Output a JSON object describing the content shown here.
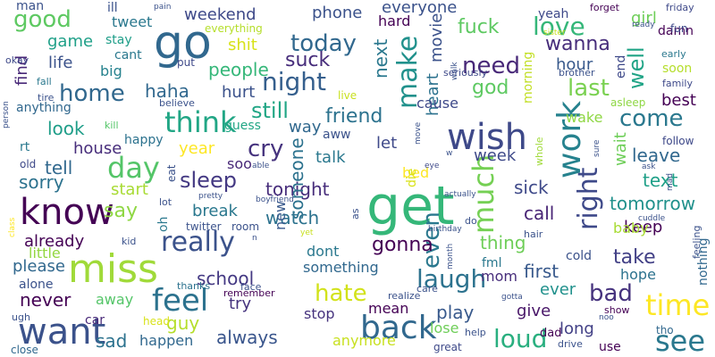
{
  "words": [
    {
      "text": "get",
      "color": "#35b779"
    },
    {
      "text": "go",
      "color": "#31688e"
    },
    {
      "text": "miss",
      "color": "#a0da39"
    },
    {
      "text": "know",
      "color": "#440154"
    },
    {
      "text": "wish",
      "color": "#3e4989"
    },
    {
      "text": "work",
      "color": "#26828e"
    },
    {
      "text": "want",
      "color": "#3b528b"
    },
    {
      "text": "back",
      "color": "#31688e"
    },
    {
      "text": "see",
      "color": "#2a788e"
    },
    {
      "text": "time",
      "color": "#fde725"
    },
    {
      "text": "feel",
      "color": "#2c728e"
    },
    {
      "text": "make",
      "color": "#21918c"
    },
    {
      "text": "much",
      "color": "#75d054"
    },
    {
      "text": "think",
      "color": "#21a685"
    },
    {
      "text": "day",
      "color": "#54c568"
    },
    {
      "text": "really",
      "color": "#3b528b"
    },
    {
      "text": "laugh",
      "color": "#2c728e"
    },
    {
      "text": "loud",
      "color": "#29af7f"
    },
    {
      "text": "love",
      "color": "#35b779"
    },
    {
      "text": "right",
      "color": "#3e4989"
    },
    {
      "text": "night",
      "color": "#355f8d"
    },
    {
      "text": "today",
      "color": "#31688e"
    },
    {
      "text": "need",
      "color": "#482878"
    },
    {
      "text": "good",
      "color": "#5ec962"
    },
    {
      "text": "home",
      "color": "#31688e"
    },
    {
      "text": "hate",
      "color": "#d2e21b"
    },
    {
      "text": "bad",
      "color": "#46337e"
    },
    {
      "text": "come",
      "color": "#2a788e"
    },
    {
      "text": "last",
      "color": "#7ad151"
    },
    {
      "text": "still",
      "color": "#21a685"
    },
    {
      "text": "even",
      "color": "#2a788e"
    },
    {
      "text": "cry",
      "color": "#46337e"
    },
    {
      "text": "wanna",
      "color": "#472d7b"
    },
    {
      "text": "sleep",
      "color": "#443983"
    },
    {
      "text": "friend",
      "color": "#2c728e"
    },
    {
      "text": "well",
      "color": "#20a486"
    },
    {
      "text": "fuck",
      "color": "#5ec962"
    },
    {
      "text": "god",
      "color": "#5ec962"
    },
    {
      "text": "suck",
      "color": "#472d7b"
    },
    {
      "text": "gonna",
      "color": "#440154"
    },
    {
      "text": "tonight",
      "color": "#472d7b"
    },
    {
      "text": "take",
      "color": "#424086"
    },
    {
      "text": "say",
      "color": "#8fd744"
    },
    {
      "text": "sorry",
      "color": "#2c728e"
    },
    {
      "text": "tell",
      "color": "#31688e"
    },
    {
      "text": "play",
      "color": "#38598c"
    },
    {
      "text": "always",
      "color": "#39558c"
    },
    {
      "text": "sad",
      "color": "#2c728e"
    },
    {
      "text": "text",
      "color": "#1fa088"
    },
    {
      "text": "next",
      "color": "#2a788e"
    },
    {
      "text": "watch",
      "color": "#2c728e"
    },
    {
      "text": "first",
      "color": "#38598c"
    },
    {
      "text": "look",
      "color": "#1f9e89"
    },
    {
      "text": "call",
      "color": "#482475"
    },
    {
      "text": "school",
      "color": "#443983"
    },
    {
      "text": "sick",
      "color": "#3e4989"
    },
    {
      "text": "movie",
      "color": "#3b528b"
    },
    {
      "text": "heart",
      "color": "#2c728e"
    },
    {
      "text": "tomorrow",
      "color": "#21918c"
    },
    {
      "text": "haha",
      "color": "#31688e"
    },
    {
      "text": "people",
      "color": "#35b779"
    },
    {
      "text": "guy",
      "color": "#b5de2b"
    },
    {
      "text": "someone",
      "color": "#2c728e"
    },
    {
      "text": "wait",
      "color": "#6ece58"
    },
    {
      "text": "thing",
      "color": "#6ece58"
    },
    {
      "text": "already",
      "color": "#440154"
    },
    {
      "text": "never",
      "color": "#440154"
    },
    {
      "text": "leave",
      "color": "#31688e"
    },
    {
      "text": "hour",
      "color": "#38598c"
    },
    {
      "text": "talk",
      "color": "#2a788e"
    },
    {
      "text": "hurt",
      "color": "#3b528b"
    },
    {
      "text": "phone",
      "color": "#3b528b"
    },
    {
      "text": "weekend",
      "color": "#3e4989"
    },
    {
      "text": "game",
      "color": "#1fa088"
    },
    {
      "text": "new",
      "color": "#38598c"
    },
    {
      "text": "let",
      "color": "#3e4989"
    },
    {
      "text": "way",
      "color": "#31688e"
    },
    {
      "text": "try",
      "color": "#46337e"
    },
    {
      "text": "happen",
      "color": "#31688e"
    },
    {
      "text": "life",
      "color": "#3b528b"
    },
    {
      "text": "find",
      "color": "#482878"
    },
    {
      "text": "keep",
      "color": "#440154"
    },
    {
      "text": "mom",
      "color": "#472d7b"
    },
    {
      "text": "ever",
      "color": "#21918c"
    },
    {
      "text": "week",
      "color": "#3e4989"
    },
    {
      "text": "give",
      "color": "#481668"
    },
    {
      "text": "everyone",
      "color": "#3b528b"
    },
    {
      "text": "girl",
      "color": "#6ece58"
    },
    {
      "text": "start",
      "color": "#a8db34"
    },
    {
      "text": "house",
      "color": "#472d7b"
    },
    {
      "text": "anymore",
      "color": "#c8e020"
    },
    {
      "text": "something",
      "color": "#31688e"
    },
    {
      "text": "dont",
      "color": "#2a788e"
    },
    {
      "text": "shit",
      "color": "#d8e219"
    },
    {
      "text": "best",
      "color": "#440154"
    },
    {
      "text": "baby",
      "color": "#a8db34"
    },
    {
      "text": "wake",
      "color": "#8fd744"
    },
    {
      "text": "hope",
      "color": "#2c728e"
    },
    {
      "text": "break",
      "color": "#2a788e"
    },
    {
      "text": "please",
      "color": "#31688e"
    },
    {
      "text": "little",
      "color": "#93d741"
    },
    {
      "text": "away",
      "color": "#54c568"
    },
    {
      "text": "mean",
      "color": "#440154"
    },
    {
      "text": "stop",
      "color": "#46337e"
    },
    {
      "text": "lose",
      "color": "#6ece58"
    },
    {
      "text": "tweet",
      "color": "#2a788e"
    },
    {
      "text": "year",
      "color": "#fde725"
    },
    {
      "text": "cause",
      "color": "#3e4989"
    },
    {
      "text": "bed",
      "color": "#fde725"
    },
    {
      "text": "end",
      "color": "#3e4989"
    },
    {
      "text": "soo",
      "color": "#482878"
    },
    {
      "text": "long",
      "color": "#424086"
    },
    {
      "text": "hard",
      "color": "#440154"
    },
    {
      "text": "cold",
      "color": "#3b528b"
    },
    {
      "text": "morning",
      "color": "#c2df23"
    },
    {
      "text": "alone",
      "color": "#3b528b"
    },
    {
      "text": "happy",
      "color": "#2c728e"
    },
    {
      "text": "big",
      "color": "#26828e"
    },
    {
      "text": "cant",
      "color": "#2a788e"
    },
    {
      "text": "stay",
      "color": "#1f9e89"
    },
    {
      "text": "man",
      "color": "#3b528b"
    },
    {
      "text": "ill",
      "color": "#3b528b"
    },
    {
      "text": "anything",
      "color": "#31688e"
    },
    {
      "text": "nothing",
      "color": "#31688e"
    },
    {
      "text": "car",
      "color": "#482878"
    },
    {
      "text": "eat",
      "color": "#3b528b"
    },
    {
      "text": "fml",
      "color": "#2a788e"
    },
    {
      "text": "aww",
      "color": "#3b528b"
    },
    {
      "text": "oh",
      "color": "#2a788e"
    },
    {
      "text": "everything",
      "color": "#b5de2b"
    },
    {
      "text": "soon",
      "color": "#b5de2b"
    },
    {
      "text": "damn",
      "color": "#440154"
    },
    {
      "text": "yeah",
      "color": "#3e4989"
    },
    {
      "text": "guess",
      "color": "#21a685"
    },
    {
      "text": "die",
      "color": "#d8e219"
    },
    {
      "text": "live",
      "color": "#c8e020"
    },
    {
      "text": "dad",
      "color": "#440154"
    },
    {
      "text": "rt",
      "color": "#2a788e"
    },
    {
      "text": "fun",
      "color": "#3e4989"
    },
    {
      "text": "put",
      "color": "#3e4989"
    },
    {
      "text": "room",
      "color": "#3b528b"
    },
    {
      "text": "head",
      "color": "#d8e219"
    },
    {
      "text": "twitter",
      "color": "#3b528b"
    },
    {
      "text": "remember",
      "color": "#440154"
    },
    {
      "text": "use",
      "color": "#440154"
    },
    {
      "text": "friday",
      "color": "#3e4989"
    },
    {
      "text": "seriously",
      "color": "#3e4989"
    },
    {
      "text": "believe",
      "color": "#3b528b"
    },
    {
      "text": "show",
      "color": "#440154"
    },
    {
      "text": "whole",
      "color": "#a0da39"
    },
    {
      "text": "tho",
      "color": "#31688e"
    },
    {
      "text": "forget",
      "color": "#440154"
    },
    {
      "text": "close",
      "color": "#31688e"
    },
    {
      "text": "family",
      "color": "#3e4989"
    },
    {
      "text": "early",
      "color": "#2a788e"
    },
    {
      "text": "asleep",
      "color": "#8fd744"
    },
    {
      "text": "help",
      "color": "#3b528b"
    },
    {
      "text": "drive",
      "color": "#3b528b"
    },
    {
      "text": "follow",
      "color": "#3e4989"
    },
    {
      "text": "feeling",
      "color": "#3b528b"
    },
    {
      "text": "kid",
      "color": "#3b528b"
    },
    {
      "text": "care",
      "color": "#3b528b"
    },
    {
      "text": "hair",
      "color": "#3b528b"
    },
    {
      "text": "realize",
      "color": "#3b528b"
    },
    {
      "text": "month",
      "color": "#3b528b"
    },
    {
      "text": "face",
      "color": "#3b528b"
    },
    {
      "text": "great",
      "color": "#3e4989"
    },
    {
      "text": "thanks",
      "color": "#2c728e"
    },
    {
      "text": "fall",
      "color": "#2a788e"
    },
    {
      "text": "okay",
      "color": "#3e4989"
    },
    {
      "text": "tire",
      "color": "#3b528b"
    },
    {
      "text": "kill",
      "color": "#54c568"
    },
    {
      "text": "old",
      "color": "#3e4989"
    },
    {
      "text": "boyfriend",
      "color": "#3b528b"
    },
    {
      "text": "birthday",
      "color": "#3b528b"
    },
    {
      "text": "actually",
      "color": "#3b528b"
    },
    {
      "text": "eye",
      "color": "#3e4989"
    },
    {
      "text": "move",
      "color": "#3b528b"
    },
    {
      "text": "pain",
      "color": "#3b528b"
    },
    {
      "text": "sister",
      "color": "#c8e020"
    },
    {
      "text": "ready",
      "color": "#3b528b"
    },
    {
      "text": "brother",
      "color": "#3b528b"
    },
    {
      "text": "walk",
      "color": "#3b528b"
    },
    {
      "text": "pretty",
      "color": "#3b528b"
    },
    {
      "text": "lot",
      "color": "#3b528b"
    },
    {
      "text": "able",
      "color": "#3b528b"
    },
    {
      "text": "mad",
      "color": "#3b528b"
    },
    {
      "text": "ask",
      "color": "#3b528b"
    },
    {
      "text": "sure",
      "color": "#3b528b"
    },
    {
      "text": "cuddle",
      "color": "#3b528b"
    },
    {
      "text": "class",
      "color": "#fde725"
    },
    {
      "text": "person",
      "color": "#3b528b"
    },
    {
      "text": "yet",
      "color": "#c8e020"
    },
    {
      "text": "gotta",
      "color": "#3b528b"
    },
    {
      "text": "noo",
      "color": "#3b528b"
    },
    {
      "text": "n",
      "color": "#3b528b"
    },
    {
      "text": "w",
      "color": "#3b528b"
    },
    {
      "text": "ugh",
      "color": "#3b528b"
    },
    {
      "text": "as",
      "color": "#3b528b"
    },
    {
      "text": "do",
      "color": "#3b528b"
    }
  ]
}
